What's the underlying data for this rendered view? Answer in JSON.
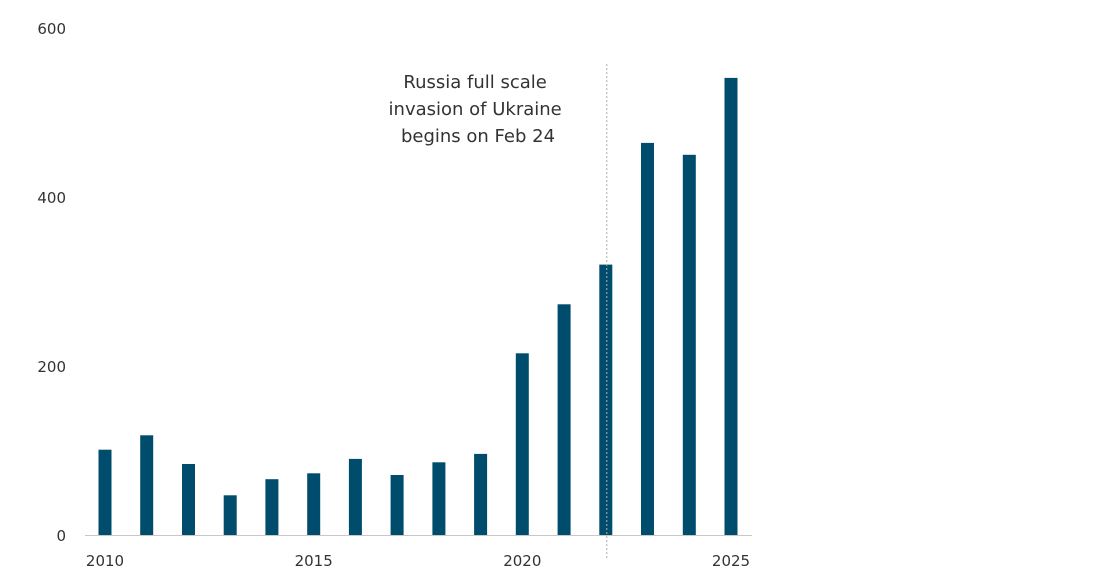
{
  "chart_data": {
    "type": "bar",
    "x": [
      2010,
      2011,
      2012,
      2013,
      2014,
      2015,
      2016,
      2017,
      2018,
      2019,
      2020,
      2021,
      2022,
      2023,
      2024,
      2025
    ],
    "values": [
      101,
      118,
      84,
      47,
      66,
      73,
      90,
      71,
      86,
      96,
      215,
      273,
      320,
      464,
      450,
      541
    ],
    "xticks": [
      "2010",
      "2015",
      "2020",
      "2025"
    ],
    "yticks": [
      "0",
      "200",
      "400",
      "600"
    ],
    "ylim": [
      0,
      600
    ],
    "xlim": [
      2010,
      2025
    ],
    "grid": false,
    "bar_color": "#004c6d",
    "axis_color": "#c8c8c8",
    "annotation": {
      "x": 2022,
      "lines": [
        "Russia full scale",
        "invasion of Ukraine",
        "begins on Feb 24"
      ],
      "line_color": "#b0b0b0"
    }
  }
}
